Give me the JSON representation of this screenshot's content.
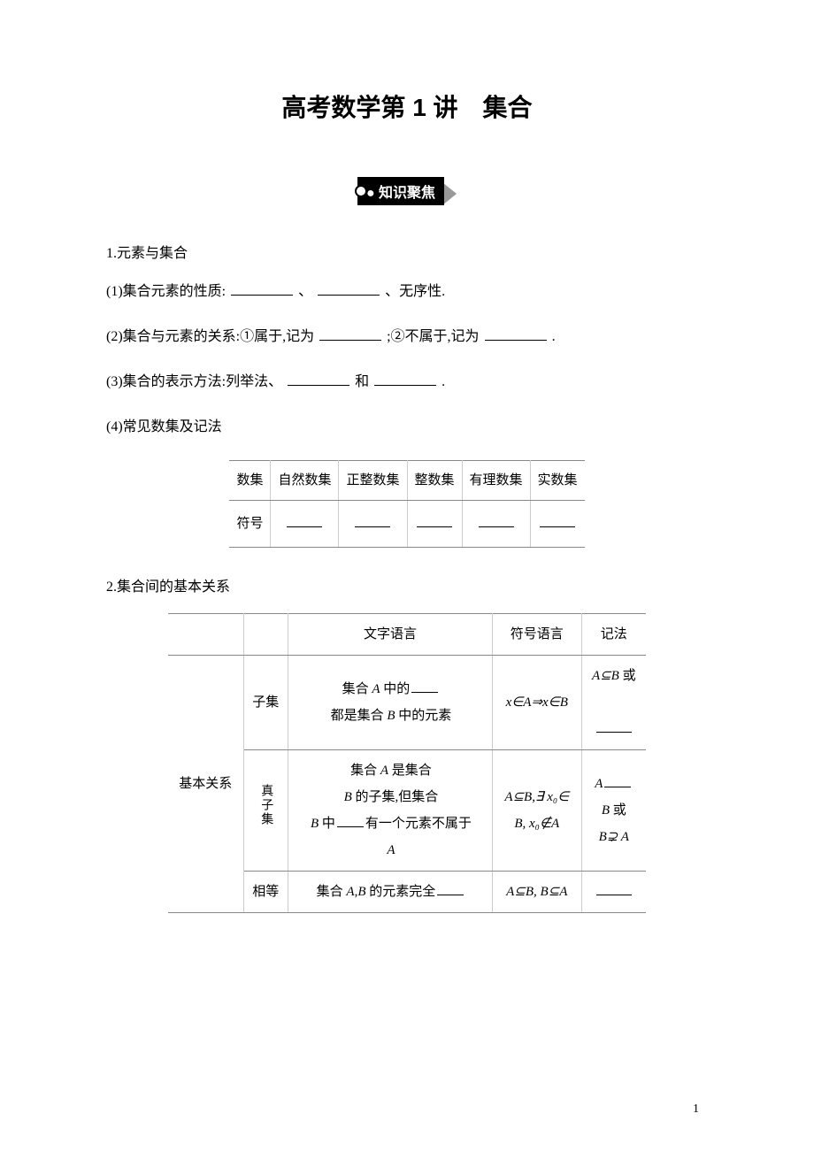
{
  "title": "高考数学第 1 讲　集合",
  "badge": "知识聚焦",
  "s1": {
    "heading": "1.元素与集合",
    "p1_a": "(1)集合元素的性质:",
    "p1_b": "、",
    "p1_c": "、无序性.",
    "p2_a": "(2)集合与元素的关系:①属于,记为",
    "p2_b": ";②不属于,记为",
    "p2_c": ".",
    "p3_a": "(3)集合的表示方法:列举法、",
    "p3_b": "和",
    "p3_c": ".",
    "p4": "(4)常见数集及记法"
  },
  "numset": {
    "h0": "数集",
    "h1": "自然数集",
    "h2": "正整数集",
    "h3": "整数集",
    "h4": "有理数集",
    "h5": "实数集",
    "r0": "符号"
  },
  "s2": {
    "heading": "2.集合间的基本关系"
  },
  "rel": {
    "th1": "",
    "th2": "",
    "th3": "文字语言",
    "th4": "符号语言",
    "th5": "记法",
    "rowhead": "基本关系",
    "r1": {
      "name": "子集",
      "desc_a": "集合 ",
      "desc_aA": "A",
      "desc_b": " 中的",
      "desc_c": "都是集合 ",
      "desc_cB": "B",
      "desc_d": " 中的元素",
      "sym": "x∈A⇒x∈B",
      "note_a": "A⊆B",
      "note_b": " 或"
    },
    "r2": {
      "name": "真子集",
      "desc_a": "集合 ",
      "desc_aA": "A",
      "desc_b": " 是集合 ",
      "desc_bB": "B",
      "desc_c": " 的子集,但集合 ",
      "desc_cB": "B",
      "desc_d": " 中",
      "desc_e": "有一个元素不属于 ",
      "desc_eA": "A",
      "sym_a": "A⊆B,",
      "sym_b": "∃ x₀∈",
      "sym_c": "B, x₀∉A",
      "note_a": "A",
      "note_b": "B",
      "note_c": " 或",
      "note_d": "B",
      "note_e": "⊋",
      "note_f": " A"
    },
    "r3": {
      "name": "相等",
      "desc_a": "集合 ",
      "desc_aA": "A",
      "desc_ab": ",",
      "desc_aB": "B",
      "desc_b": " 的元素完全",
      "sym": "A⊆B, B⊆A"
    }
  },
  "pagenum": "1"
}
